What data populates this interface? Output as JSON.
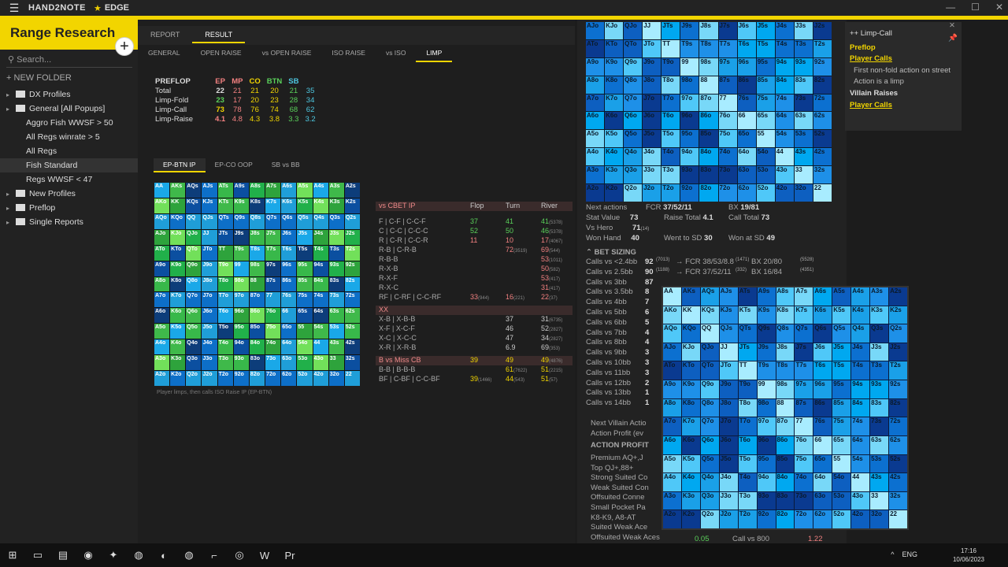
{
  "titlebar": {
    "app": "HAND2NOTE",
    "edition": "EDGE",
    "controls": [
      "—",
      "☐",
      "✕"
    ]
  },
  "sidebar": {
    "title": "Range Research",
    "add": "+",
    "search_placeholder": "Search...",
    "new_folder": "NEW FOLDER",
    "items": [
      {
        "label": "DX Profiles",
        "level": 0,
        "folder": true
      },
      {
        "label": "General [All Popups]",
        "level": 0,
        "folder": true
      },
      {
        "label": "Aggro Fish WWSF > 50",
        "level": 1
      },
      {
        "label": "All Regs winrate > 5",
        "level": 1
      },
      {
        "label": "All Regs",
        "level": 1
      },
      {
        "label": "Fish Standard",
        "level": 1,
        "selected": true
      },
      {
        "label": "Regs WWSF < 47",
        "level": 1
      },
      {
        "label": "New Profiles",
        "level": 0,
        "folder": true
      },
      {
        "label": "Preflop",
        "level": 0,
        "folder": true
      },
      {
        "label": "Single Reports",
        "level": 0,
        "folder": true
      }
    ]
  },
  "tabs": {
    "top": [
      {
        "label": "REPORT"
      },
      {
        "label": "RESULT",
        "active": true
      }
    ],
    "second": [
      {
        "label": "GENERAL"
      },
      {
        "label": "OPEN RAISE"
      },
      {
        "label": "vs OPEN RAISE"
      },
      {
        "label": "ISO RAISE"
      },
      {
        "label": "vs ISO"
      },
      {
        "label": "LIMP",
        "active": true
      }
    ],
    "third": [
      {
        "label": "EP-BTN IP",
        "active": true
      },
      {
        "label": "EP-CO OOP"
      },
      {
        "label": "SB vs BB"
      }
    ]
  },
  "preflop": {
    "headers": [
      "PREFLOP",
      "EP",
      "MP",
      "CO",
      "BTN",
      "SB"
    ],
    "rows": [
      {
        "label": "Total",
        "total": "22",
        "vals": [
          "21",
          "21",
          "20",
          "21",
          "35"
        ]
      },
      {
        "label": "Limp-Fold",
        "total": "23",
        "vals": [
          "17",
          "20",
          "23",
          "28",
          "34"
        ]
      },
      {
        "label": "Limp-Call",
        "total": "73",
        "vals": [
          "78",
          "76",
          "74",
          "68",
          "62"
        ]
      },
      {
        "label": "Limp-Raise",
        "total": "4.1",
        "vals": [
          "4.8",
          "4.3",
          "3.8",
          "3.3",
          "3.2"
        ]
      }
    ]
  },
  "grid_caption": "Player limps, then calls ISO Raise IP (EP-BTN)",
  "cbet": {
    "headers": [
      "vs CBET IP",
      "Flop",
      "Turn",
      "River"
    ],
    "rows": [
      {
        "label": "F | C-F | C-C-F",
        "flop": "37",
        "turn": "41",
        "river": "41",
        "rsmall": "(5378)",
        "hdr": false
      },
      {
        "label": "C | C-C | C-C-C",
        "flop": "52",
        "turn": "50",
        "river": "46",
        "rsmall": "(5378)"
      },
      {
        "label": "R | C-R | C-C-R",
        "flop": "11",
        "turn": "10",
        "river": "17",
        "rsmall": "(4067)"
      },
      {
        "label": "R-B | C-R-B",
        "flop": "",
        "turn": "72",
        "tsmall": "(3519)",
        "river": "69",
        "rsmall": "(544)"
      },
      {
        "label": "R-B-B",
        "river": "53",
        "rsmall": "(1011)"
      },
      {
        "label": "R-X-B",
        "river": "50",
        "rsmall": "(582)"
      },
      {
        "label": "R-X-F",
        "river": "53",
        "rsmall": "(417)"
      },
      {
        "label": "R-X-C",
        "river": "31",
        "rsmall": "(417)"
      },
      {
        "label": "RF | C-RF | C-C-RF",
        "flop": "33",
        "fsmall": "(944)",
        "turn": "16",
        "tsmall": "(221)",
        "river": "22",
        "rsmall": "(37)"
      },
      {
        "label": "XX",
        "hdr": true
      },
      {
        "label": "X-B | X-B-B",
        "turn": "37",
        "river": "31",
        "rsmall": "(6735)"
      },
      {
        "label": "X-F | X-C-F",
        "turn": "46",
        "river": "52",
        "rsmall": "(2827)"
      },
      {
        "label": "X-C | X-C-C",
        "turn": "47",
        "river": "34",
        "rsmall": "(2827)"
      },
      {
        "label": "X-R | X-R-B",
        "turn": "6.9",
        "river": "69",
        "rsmall": "(353)"
      },
      {
        "label": "B vs Miss CB",
        "hdr": true,
        "flop": "39",
        "turn": "49",
        "river": "49",
        "rsmall": "(4876)"
      },
      {
        "label": "B-B | B-B-B",
        "turn": "61",
        "tsmall": "(7622)",
        "river": "51",
        "rsmall": "(2215)"
      },
      {
        "label": "BF | C-BF | C-C-BF",
        "flop": "39",
        "fsmall": "(1466)",
        "turn": "44",
        "tsmall": "(543)",
        "river": "51",
        "rsmall": "(57)"
      }
    ]
  },
  "stats": {
    "next_actions": "Next actions",
    "fcr_label": "FCR",
    "fcr": "37/52/11",
    "bx_label": "BX",
    "bx": "19/81",
    "stat_value_label": "Stat Value",
    "stat_value": "73",
    "raise_total_label": "Raise Total",
    "raise_total": "4.1",
    "call_total_label": "Call Total",
    "call_total": "73",
    "vs_hero_label": "Vs Hero",
    "vs_hero": "71",
    "vs_hero_small": "(14)",
    "won_hand_label": "Won Hand",
    "won_hand": "40",
    "went_sd_label": "Went to SD",
    "went_sd": "30",
    "won_sd_label": "Won at SD",
    "won_sd": "49",
    "bet_sizing": "BET SIZING",
    "sizing": [
      {
        "label": "Calls vs <2.4bb",
        "v": "92",
        "s": "(7013)",
        "fcr": "→ FCR 38/53/8.8",
        "fs": "(1471)",
        "bx": "BX 20/80",
        "bs": "(5528)"
      },
      {
        "label": "Calls vs 2.5bb",
        "v": "90",
        "s": "(1188)",
        "fcr": "→ FCR 37/52/11",
        "fs": "(332)",
        "bx": "BX 16/84",
        "bs": "(4351)"
      },
      {
        "label": "Calls vs 3bb",
        "v": "87"
      },
      {
        "label": "Calls vs 3.5bb",
        "v": "8"
      },
      {
        "label": "Calls vs 4bb",
        "v": "7"
      },
      {
        "label": "Calls vs 5bb",
        "v": "6"
      },
      {
        "label": "Calls vs 6bb",
        "v": "5"
      },
      {
        "label": "Calls vs 7bb",
        "v": "4"
      },
      {
        "label": "Calls vs 8bb",
        "v": "4"
      },
      {
        "label": "Calls vs 9bb",
        "v": "3"
      },
      {
        "label": "Calls vs 10bb",
        "v": "3"
      },
      {
        "label": "Calls vs 11bb",
        "v": "3"
      },
      {
        "label": "Calls vs 12bb",
        "v": "2"
      },
      {
        "label": "Calls vs 13bb",
        "v": "1"
      },
      {
        "label": "Calls vs 14bb",
        "v": "1"
      }
    ],
    "next_villain": "Next Villain Actio",
    "action_profit_ev": "Action Profit (ev",
    "action_profit": "ACTION PROFIT",
    "profit_rows": [
      "Premium AQ+,J",
      "Top QJ+,88+",
      "Strong Suited Co",
      "Weak Suited Con",
      "Offsuited Conne",
      "Small Pocket Pa",
      "K8-K9, A8-AT",
      "Suited Weak Ace",
      "Offsuited Weak Aces"
    ],
    "bottom_vals": [
      "0.05",
      "Call vs 800",
      "1.22"
    ]
  },
  "popup": {
    "title": "++ Limp-Call",
    "preflop": "Preflop",
    "player_calls": "Player Calls",
    "note1": "First non-fold action on street",
    "note2": "Action is a limp",
    "villain_raises": "Villain Raises",
    "player_calls2": "Player Calls"
  },
  "ranks": [
    "A",
    "K",
    "Q",
    "J",
    "T",
    "9",
    "8",
    "7",
    "6",
    "5",
    "4",
    "3",
    "2"
  ],
  "grid1_colors": [
    "#1aa8e8",
    "#2ea33c",
    "#38b84a",
    "#3fb94a",
    "#1f9ed8",
    "#0b4fa0",
    "#0d3d7a",
    "#72e05a",
    "#21b04a",
    "#0d6fc8"
  ],
  "taskbar": {
    "time": "17:16",
    "date": "10/06/2023",
    "lang": "ENG"
  }
}
